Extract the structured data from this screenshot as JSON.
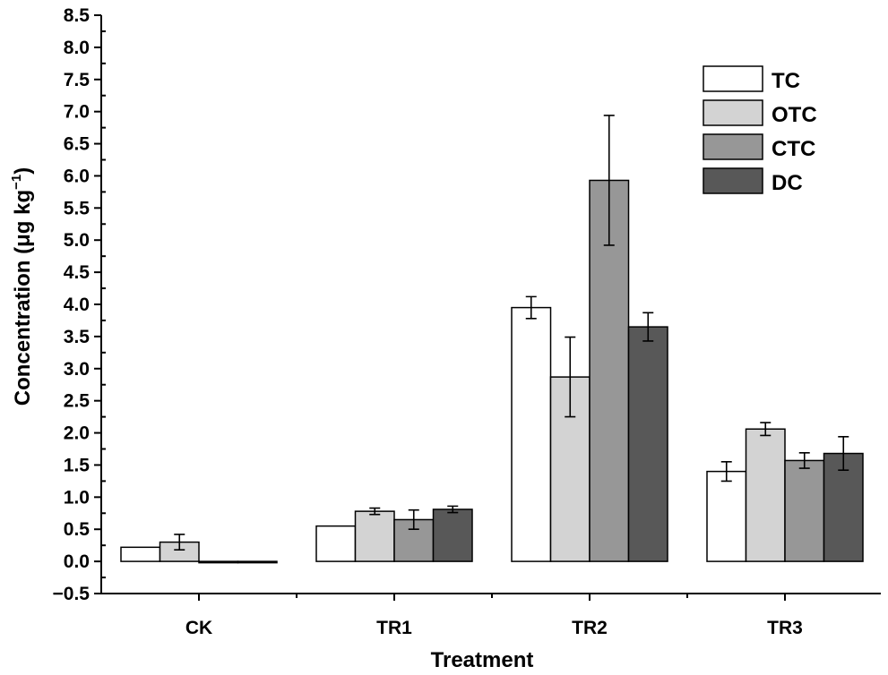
{
  "chart_data": {
    "type": "bar",
    "xlabel": "Treatment",
    "ylabel": "Concentration (μg kg",
    "ylabel_superscript": "−1",
    "ylabel_close": ")",
    "categories": [
      "CK",
      "TR1",
      "TR2",
      "TR3"
    ],
    "ylim": [
      -0.5,
      8.5
    ],
    "ytick_step": 0.5,
    "ytick_labels": [
      "−0.5",
      "0.0",
      "0.5",
      "1.0",
      "1.5",
      "2.0",
      "2.5",
      "3.0",
      "3.5",
      "4.0",
      "4.5",
      "5.0",
      "5.5",
      "6.0",
      "6.5",
      "7.0",
      "7.5",
      "8.0",
      "8.5"
    ],
    "grid": false,
    "legend_position": "top-right",
    "series": [
      {
        "name": "TC",
        "color": "#ffffff",
        "values": [
          0.22,
          0.55,
          3.95,
          1.4
        ],
        "errors": [
          0.0,
          0.0,
          0.17,
          0.15
        ]
      },
      {
        "name": "OTC",
        "color": "#d3d3d3",
        "values": [
          0.3,
          0.78,
          2.87,
          2.06
        ],
        "errors": [
          0.12,
          0.05,
          0.62,
          0.1
        ]
      },
      {
        "name": "CTC",
        "color": "#979797",
        "values": [
          0.0,
          0.65,
          5.93,
          1.57
        ],
        "errors": [
          0.0,
          0.15,
          1.01,
          0.12
        ]
      },
      {
        "name": "DC",
        "color": "#585858",
        "values": [
          0.0,
          0.81,
          3.65,
          1.68
        ],
        "errors": [
          0.0,
          0.05,
          0.22,
          0.26
        ]
      }
    ]
  }
}
